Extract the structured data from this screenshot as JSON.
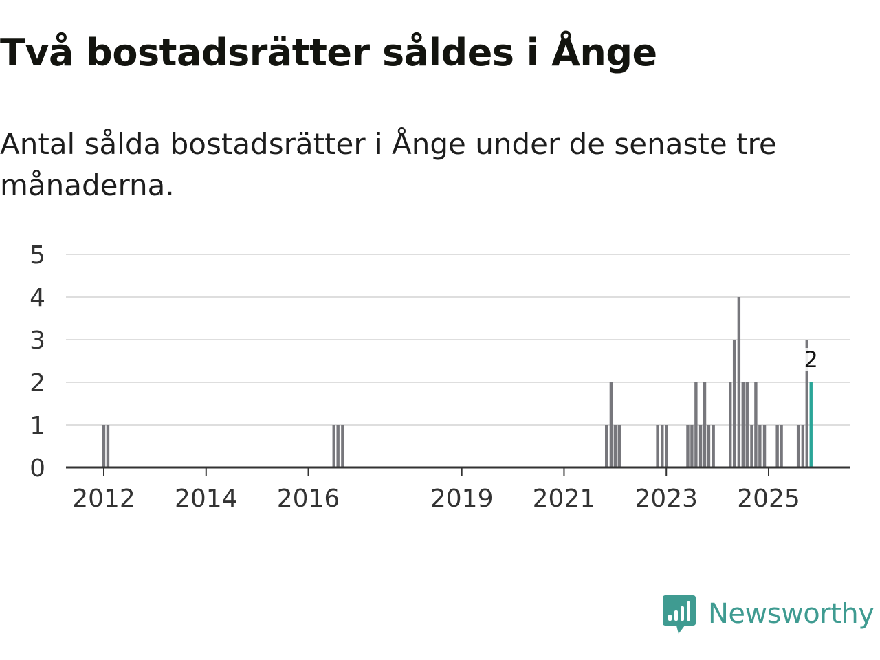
{
  "title": "Två bostadsrätter såldes i Ånge",
  "subtitle": "Antal sålda bostadsrätter i Ånge under de senaste tre månaderna.",
  "colors": {
    "bar": "#77777c",
    "highlight": "#2aa598",
    "grid": "#dedede",
    "axis": "#333333"
  },
  "chart_data": {
    "type": "bar",
    "ylabel": "",
    "xlabel": "",
    "ylim": [
      0,
      5
    ],
    "yticks": [
      "0",
      "1",
      "2",
      "3",
      "4",
      "5"
    ],
    "xticks": [
      {
        "label": "2012",
        "x": 2012.0
      },
      {
        "label": "2014",
        "x": 2014.0
      },
      {
        "label": "2016",
        "x": 2016.0
      },
      {
        "label": "2019",
        "x": 2019.0
      },
      {
        "label": "2021",
        "x": 2021.0
      },
      {
        "label": "2023",
        "x": 2023.0
      },
      {
        "label": "2025",
        "x": 2025.0
      }
    ],
    "x_range": [
      2010.7,
      2026.55
    ],
    "bars": [
      {
        "x": 2012.0,
        "value": 1
      },
      {
        "x": 2012.08,
        "value": 1
      },
      {
        "x": 2016.5,
        "value": 1
      },
      {
        "x": 2016.58,
        "value": 1
      },
      {
        "x": 2016.67,
        "value": 1
      },
      {
        "x": 2021.83,
        "value": 1
      },
      {
        "x": 2021.92,
        "value": 2
      },
      {
        "x": 2022.0,
        "value": 1
      },
      {
        "x": 2022.08,
        "value": 1
      },
      {
        "x": 2022.83,
        "value": 1
      },
      {
        "x": 2022.92,
        "value": 1
      },
      {
        "x": 2023.0,
        "value": 1
      },
      {
        "x": 2023.42,
        "value": 1
      },
      {
        "x": 2023.5,
        "value": 1
      },
      {
        "x": 2023.58,
        "value": 2
      },
      {
        "x": 2023.67,
        "value": 1
      },
      {
        "x": 2023.75,
        "value": 2
      },
      {
        "x": 2023.83,
        "value": 1
      },
      {
        "x": 2023.92,
        "value": 1
      },
      {
        "x": 2024.25,
        "value": 2
      },
      {
        "x": 2024.33,
        "value": 3
      },
      {
        "x": 2024.42,
        "value": 4
      },
      {
        "x": 2024.5,
        "value": 2
      },
      {
        "x": 2024.58,
        "value": 2
      },
      {
        "x": 2024.67,
        "value": 1
      },
      {
        "x": 2024.75,
        "value": 2
      },
      {
        "x": 2024.83,
        "value": 1
      },
      {
        "x": 2024.92,
        "value": 1
      },
      {
        "x": 2025.17,
        "value": 1
      },
      {
        "x": 2025.25,
        "value": 1
      },
      {
        "x": 2025.58,
        "value": 1
      },
      {
        "x": 2025.67,
        "value": 1
      },
      {
        "x": 2025.75,
        "value": 3
      },
      {
        "x": 2025.83,
        "value": 2,
        "highlight": true
      }
    ],
    "annotation": {
      "label": "2",
      "x": 2025.83,
      "value": 2
    }
  },
  "logo": {
    "text": "Newsworthy"
  }
}
